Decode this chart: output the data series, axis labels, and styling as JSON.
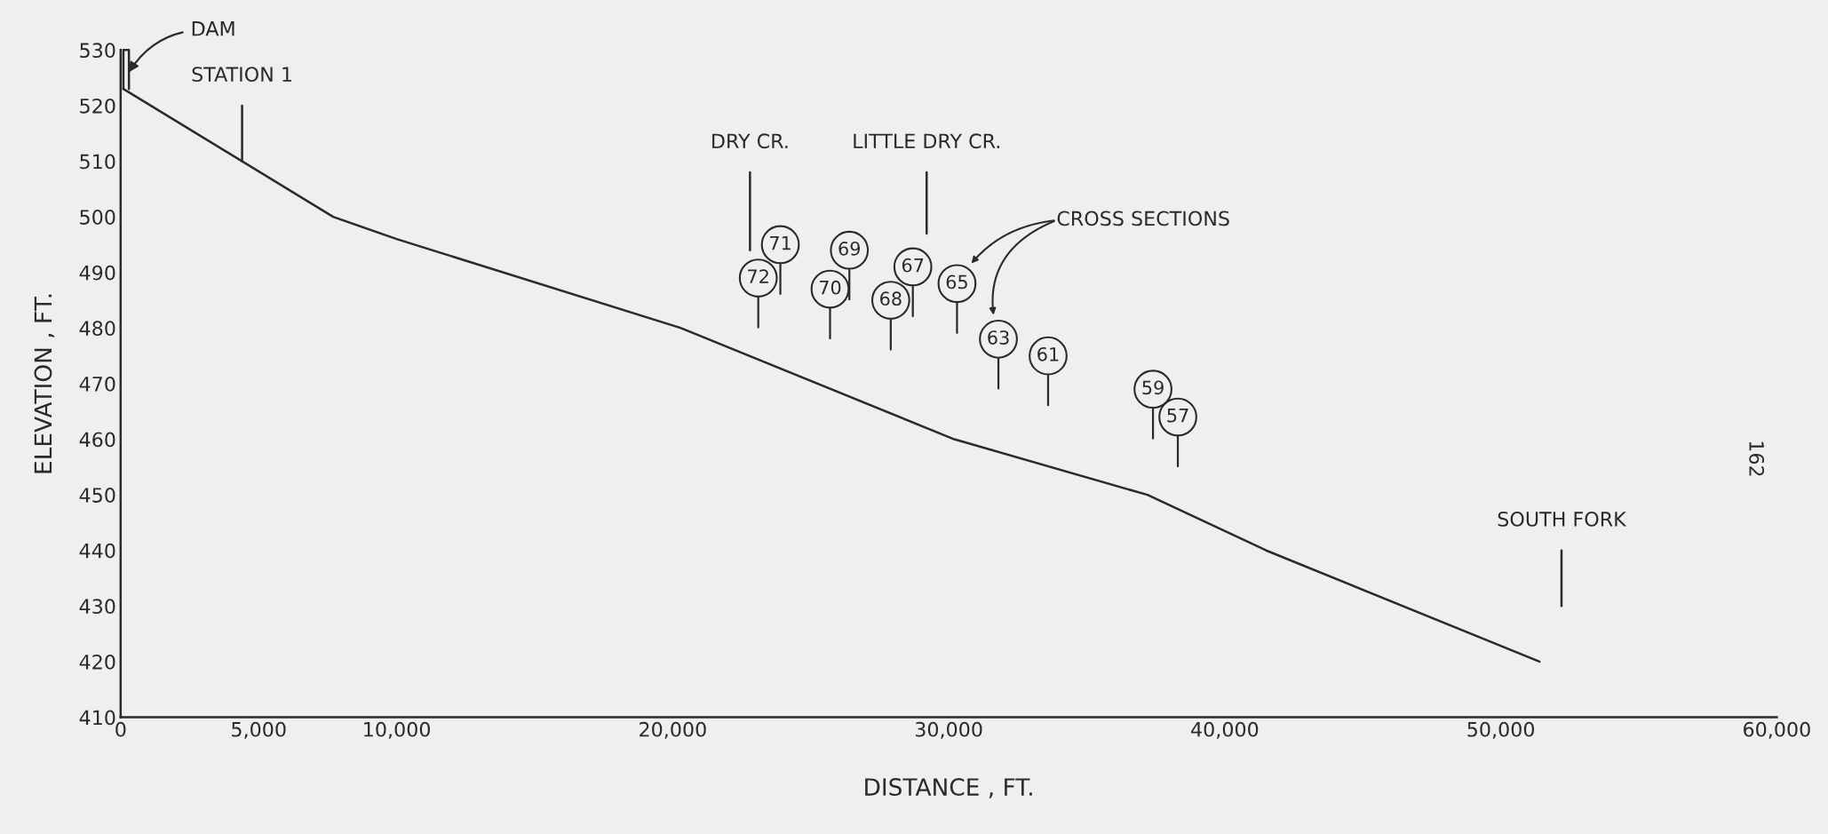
{
  "chart_data": {
    "type": "line",
    "xlabel": "DISTANCE , FT.",
    "ylabel": "ELEVATION , FT.",
    "xlim": [
      0,
      60000
    ],
    "ylim": [
      410,
      530
    ],
    "xticks": [
      0,
      {
        "value": 5000,
        "label": "5,000"
      },
      {
        "value": 10000,
        "label": "10,000"
      },
      {
        "value": 20000,
        "label": "20,000"
      },
      {
        "value": 30000,
        "label": "30,000"
      },
      {
        "value": 40000,
        "label": "40,000"
      },
      {
        "value": 50000,
        "label": "50,000"
      },
      {
        "value": 60000,
        "label": "60,000"
      }
    ],
    "yticks": [
      410,
      420,
      430,
      440,
      450,
      460,
      470,
      480,
      490,
      500,
      510,
      520,
      530
    ],
    "grid": false,
    "legend": false,
    "marker": "none",
    "line_style": "solid",
    "series": [
      {
        "color": "#2a2a2a",
        "x": [
          100,
          7700,
          10000,
          20300,
          30200,
          37200,
          41500,
          51400
        ],
        "values": [
          523,
          500,
          496,
          480,
          460,
          450,
          440,
          420
        ]
      },
      {
        "color": "#2a2a2a",
        "x": [
          100,
          100,
          300,
          300
        ],
        "values": [
          523,
          530,
          530,
          523
        ]
      },
      {
        "name": "STATION 1",
        "color": "#2a2a2a",
        "x": [
          4400,
          4400
        ],
        "values": [
          510,
          520
        ]
      },
      {
        "name": "DRY CR.",
        "color": "#2a2a2a",
        "x": [
          22800,
          22800
        ],
        "values": [
          494,
          508
        ]
      },
      {
        "name": "LITTLE DRY CR.",
        "color": "#2a2a2a",
        "x": [
          29200,
          29200
        ],
        "values": [
          497,
          508
        ]
      },
      {
        "name": "SOUTH FORK",
        "color": "#2a2a2a",
        "x": [
          52200,
          52200
        ],
        "values": [
          430,
          440
        ]
      },
      {
        "type": "scatter",
        "color": "#2a2a2a",
        "marker": "circle",
        "x": [
          23100,
          23900,
          25700,
          26400,
          27900,
          28700,
          30300,
          31800,
          33600,
          37400,
          38300
        ],
        "values": [
          489,
          495,
          487,
          494,
          485,
          491,
          488,
          478,
          475,
          469,
          464
        ]
      }
    ],
    "annotations": [
      {
        "text": "DAM",
        "x": 300,
        "y": 526
      },
      "CROSS SECTIONS",
      {
        "text": "72",
        "x": 23100,
        "y": 489
      },
      {
        "text": "71",
        "x": 23900,
        "y": 495
      },
      {
        "text": "70",
        "x": 25700,
        "y": 487
      },
      {
        "text": "69",
        "x": 26400,
        "y": 494
      },
      {
        "text": "68",
        "x": 27900,
        "y": 485
      },
      {
        "text": "67",
        "x": 28700,
        "y": 491
      },
      {
        "text": "65",
        "x": 30300,
        "y": 488
      },
      {
        "text": "63",
        "x": 31800,
        "y": 478
      },
      {
        "text": "61",
        "x": 33600,
        "y": 475
      },
      {
        "text": "59",
        "x": 37400,
        "y": 469
      },
      {
        "text": "57",
        "x": 38300,
        "y": 464
      },
      "162"
    ]
  }
}
